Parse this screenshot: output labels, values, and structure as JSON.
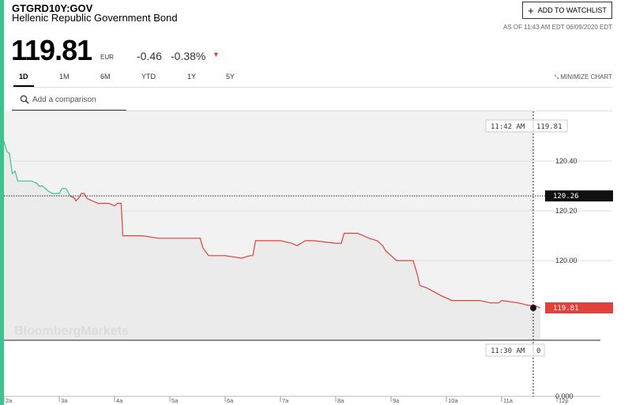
{
  "header": {
    "ticker": "GTGRD10Y:GOV",
    "name": "Hellenic Republic Government Bond",
    "watchlist_label": "ADD TO WATCHLIST",
    "as_of": "AS OF 11:43 AM EDT 06/09/2020 EDT"
  },
  "quote": {
    "price": "119.81",
    "currency": "EUR",
    "change": "-0.46",
    "change_pct": "-0.38%",
    "direction": "down",
    "down_color": "#e0413a"
  },
  "tabs": [
    {
      "label": "1D",
      "active": true
    },
    {
      "label": "1M",
      "active": false
    },
    {
      "label": "6M",
      "active": false
    },
    {
      "label": "YTD",
      "active": false
    },
    {
      "label": "1Y",
      "active": false
    },
    {
      "label": "5Y",
      "active": false
    }
  ],
  "minimize_label": "MINIMIZE CHART",
  "search": {
    "placeholder": "Add a comparison"
  },
  "watermark": "BloombergMarkets",
  "chart_data": {
    "type": "line",
    "up_color": "#3ec28f",
    "down_color": "#e0413a",
    "previous_close": 120.26,
    "y_ticks": [
      120.4,
      120.2,
      120.0
    ],
    "y_tick_labels": [
      "120.40",
      "120.20",
      "120.00"
    ],
    "ylim": [
      119.68,
      120.6
    ],
    "x_ticks": [
      "2a",
      "3a",
      "4a",
      "5a",
      "6a",
      "7a",
      "8a",
      "9a",
      "10a",
      "11a",
      "12p"
    ],
    "xlim": [
      2,
      12
    ],
    "series": [
      {
        "values": [
          [
            2.0,
            120.48
          ],
          [
            2.05,
            120.44
          ],
          [
            2.1,
            120.43
          ],
          [
            2.15,
            120.35
          ],
          [
            2.2,
            120.36
          ],
          [
            2.25,
            120.32
          ],
          [
            2.35,
            120.32
          ],
          [
            2.5,
            120.32
          ],
          [
            2.6,
            120.31
          ],
          [
            2.63,
            120.3
          ],
          [
            2.7,
            120.3
          ],
          [
            2.8,
            120.28
          ],
          [
            2.87,
            120.27
          ],
          [
            3.0,
            120.27
          ],
          [
            3.05,
            120.29
          ],
          [
            3.12,
            120.29
          ],
          [
            3.2,
            120.26
          ],
          [
            3.28,
            120.25
          ],
          [
            3.3,
            120.24
          ],
          [
            3.35,
            120.25
          ],
          [
            3.4,
            120.27
          ],
          [
            3.45,
            120.27
          ],
          [
            3.5,
            120.25
          ],
          [
            3.6,
            120.24
          ],
          [
            3.7,
            120.23
          ],
          [
            3.8,
            120.23
          ],
          [
            3.9,
            120.23
          ],
          [
            4.0,
            120.22
          ],
          [
            4.05,
            120.23
          ],
          [
            4.12,
            120.23
          ],
          [
            4.15,
            120.1
          ],
          [
            4.5,
            120.1
          ],
          [
            4.8,
            120.09
          ],
          [
            5.2,
            120.09
          ],
          [
            5.4,
            120.09
          ],
          [
            5.55,
            120.09
          ],
          [
            5.6,
            120.05
          ],
          [
            5.7,
            120.02
          ],
          [
            6.0,
            120.02
          ],
          [
            6.3,
            120.01
          ],
          [
            6.45,
            120.02
          ],
          [
            6.5,
            120.02
          ],
          [
            6.55,
            120.08
          ],
          [
            7.0,
            120.08
          ],
          [
            7.2,
            120.07
          ],
          [
            7.3,
            120.06
          ],
          [
            7.45,
            120.08
          ],
          [
            7.6,
            120.08
          ],
          [
            8.0,
            120.07
          ],
          [
            8.1,
            120.07
          ],
          [
            8.15,
            120.11
          ],
          [
            8.4,
            120.11
          ],
          [
            8.5,
            120.1
          ],
          [
            8.6,
            120.09
          ],
          [
            8.75,
            120.08
          ],
          [
            8.85,
            120.06
          ],
          [
            8.9,
            120.04
          ],
          [
            9.1,
            120.0
          ],
          [
            9.4,
            120.0
          ],
          [
            9.48,
            119.94
          ],
          [
            9.52,
            119.9
          ],
          [
            9.65,
            119.89
          ],
          [
            9.9,
            119.86
          ],
          [
            10.1,
            119.84
          ],
          [
            10.6,
            119.84
          ],
          [
            10.8,
            119.83
          ],
          [
            10.95,
            119.83
          ],
          [
            11.0,
            119.84
          ],
          [
            11.3,
            119.83
          ],
          [
            11.5,
            119.82
          ],
          [
            11.6,
            119.82
          ],
          [
            11.7,
            119.81
          ]
        ]
      }
    ],
    "cursor": {
      "time": "11:42 AM",
      "value": "119.81"
    },
    "previous_close_label": "120.26",
    "last_label": "119.81",
    "volume": {
      "time": "11:30 AM",
      "value": "0",
      "axis_label": "0.000"
    }
  }
}
